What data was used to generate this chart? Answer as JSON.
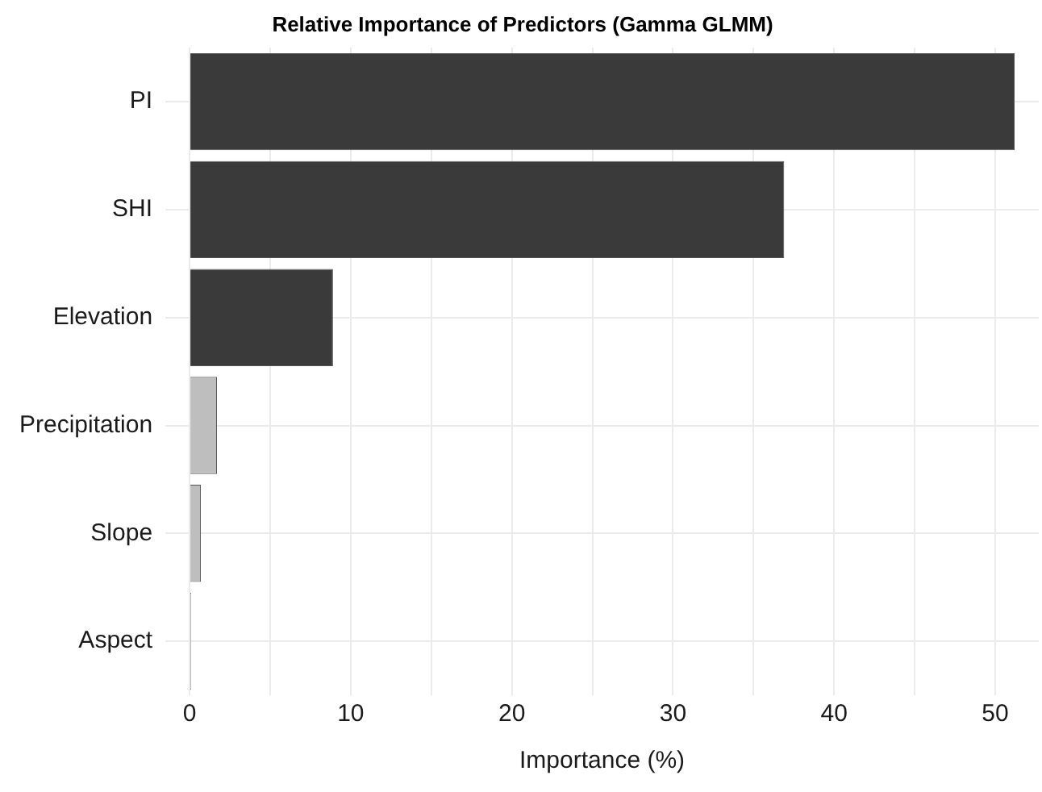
{
  "chart_data": {
    "type": "bar",
    "orientation": "horizontal",
    "title": "Relative Importance of Predictors (Gamma GLMM)",
    "xlabel": "Importance (%)",
    "categories": [
      "PI",
      "SHI",
      "Elevation",
      "Precipitation",
      "Slope",
      "Aspect"
    ],
    "values": [
      51.2,
      36.9,
      8.9,
      1.7,
      0.7,
      0.1
    ],
    "colors": [
      "#3a3a3a",
      "#3a3a3a",
      "#3a3a3a",
      "#bebebe",
      "#bebebe",
      "#bebebe"
    ],
    "xlim": [
      -1.5,
      52.7
    ],
    "xticks": [
      0,
      {
        "value": 5,
        "label": null
      },
      10,
      {
        "value": 15,
        "label": null
      },
      20,
      {
        "value": 25,
        "label": null
      },
      30,
      {
        "value": 35,
        "label": null
      },
      40,
      {
        "value": 45,
        "label": null
      },
      50
    ],
    "grid": true,
    "legend": false
  }
}
